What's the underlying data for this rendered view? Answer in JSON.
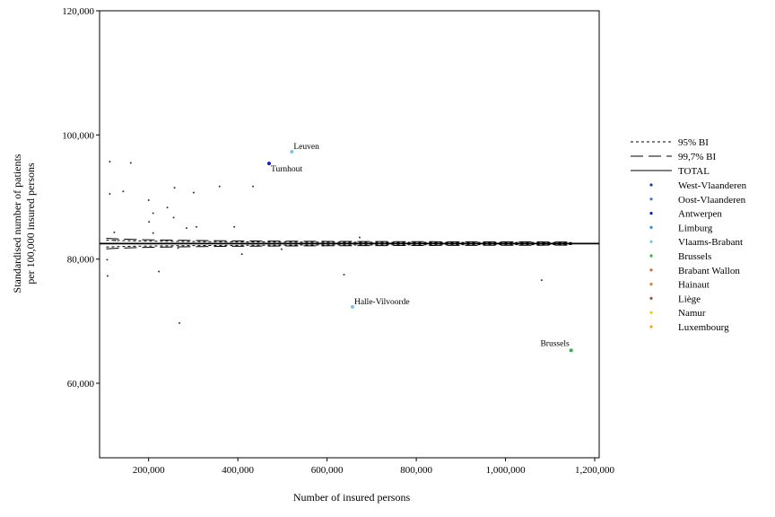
{
  "chart_data": {
    "type": "scatter",
    "title": "",
    "xlabel": "Number of insured persons",
    "ylabel_lines": [
      "Standardised number of patients",
      "per 100,000 insured persons"
    ],
    "xlim": [
      90000,
      1210000
    ],
    "ylim": [
      48000,
      120000
    ],
    "x_ticks": [
      200000,
      400000,
      600000,
      800000,
      1000000,
      1200000
    ],
    "x_tick_labels": [
      "200,000",
      "400,000",
      "600,000",
      "800,000",
      "1,000,000",
      "1,200,000"
    ],
    "y_ticks": [
      60000,
      80000,
      100000,
      120000
    ],
    "y_tick_labels": [
      "60,000",
      "80,000",
      "100,000",
      "120,000"
    ],
    "grid": false,
    "legend_position": "right",
    "total": 82500,
    "limit_lines": [
      {
        "name": "95% BI",
        "dash": "3,3",
        "z": 1.96
      },
      {
        "name": "99,7% BI",
        "dash": "14,6",
        "z": 3.0
      }
    ],
    "total_line": {
      "name": "TOTAL"
    },
    "regions": [
      {
        "name": "West-Vlaanderen",
        "color": "#1f3a93"
      },
      {
        "name": "Oost-Vlaanderen",
        "color": "#3f72d6"
      },
      {
        "name": "Antwerpen",
        "color": "#0b1fd1"
      },
      {
        "name": "Limburg",
        "color": "#2e8fe0"
      },
      {
        "name": "Vlaams-Brabant",
        "color": "#7ec3ec"
      },
      {
        "name": "Brussels",
        "color": "#2db83d"
      },
      {
        "name": "Brabant Wallon",
        "color": "#e0622a"
      },
      {
        "name": "Hainaut",
        "color": "#ec7d24"
      },
      {
        "name": "Liège",
        "color": "#a8513a"
      },
      {
        "name": "Namur",
        "color": "#f5c80a"
      },
      {
        "name": "Luxembourg",
        "color": "#f5a020"
      }
    ],
    "points": [
      {
        "x": 113000,
        "y": 95700,
        "color": "#333333"
      },
      {
        "x": 160000,
        "y": 95500,
        "color": "#333333"
      },
      {
        "x": 113000,
        "y": 90500,
        "color": "#333333"
      },
      {
        "x": 143000,
        "y": 90900,
        "color": "#333333"
      },
      {
        "x": 258000,
        "y": 91500,
        "color": "#333333"
      },
      {
        "x": 301000,
        "y": 90700,
        "color": "#333333"
      },
      {
        "x": 359000,
        "y": 91700,
        "color": "#333333"
      },
      {
        "x": 434000,
        "y": 91700,
        "color": "#333333"
      },
      {
        "x": 200000,
        "y": 89500,
        "color": "#333333"
      },
      {
        "x": 242000,
        "y": 88300,
        "color": "#333333"
      },
      {
        "x": 210000,
        "y": 87400,
        "color": "#333333"
      },
      {
        "x": 256000,
        "y": 86700,
        "color": "#333333"
      },
      {
        "x": 201000,
        "y": 86000,
        "color": "#333333"
      },
      {
        "x": 285000,
        "y": 85000,
        "color": "#333333"
      },
      {
        "x": 307000,
        "y": 85200,
        "color": "#333333"
      },
      {
        "x": 392000,
        "y": 85200,
        "color": "#333333"
      },
      {
        "x": 123000,
        "y": 84300,
        "color": "#333333"
      },
      {
        "x": 210000,
        "y": 84200,
        "color": "#333333"
      },
      {
        "x": 125000,
        "y": 83000,
        "color": "#333333"
      },
      {
        "x": 673000,
        "y": 83500,
        "color": "#333333"
      },
      {
        "x": 266000,
        "y": 81800,
        "color": "#333333"
      },
      {
        "x": 498000,
        "y": 81600,
        "color": "#333333"
      },
      {
        "x": 409000,
        "y": 80800,
        "color": "#333333"
      },
      {
        "x": 107000,
        "y": 79900,
        "color": "#333333"
      },
      {
        "x": 223000,
        "y": 78000,
        "color": "#333333"
      },
      {
        "x": 108000,
        "y": 77300,
        "color": "#333333"
      },
      {
        "x": 638000,
        "y": 77500,
        "color": "#333333"
      },
      {
        "x": 1081000,
        "y": 76600,
        "color": "#333333"
      },
      {
        "x": 269000,
        "y": 69700,
        "color": "#333333"
      },
      {
        "x": 470000,
        "y": 95400,
        "color": "#0b1fd1",
        "label": "Turnhout"
      },
      {
        "x": 521000,
        "y": 97300,
        "color": "#7ec3ec",
        "label": "Leuven"
      },
      {
        "x": 657000,
        "y": 72300,
        "color": "#7ec3ec",
        "label": "Halle-Vilvoorde"
      },
      {
        "x": 1147000,
        "y": 65300,
        "color": "#2db83d",
        "label": "Brussels"
      }
    ]
  }
}
